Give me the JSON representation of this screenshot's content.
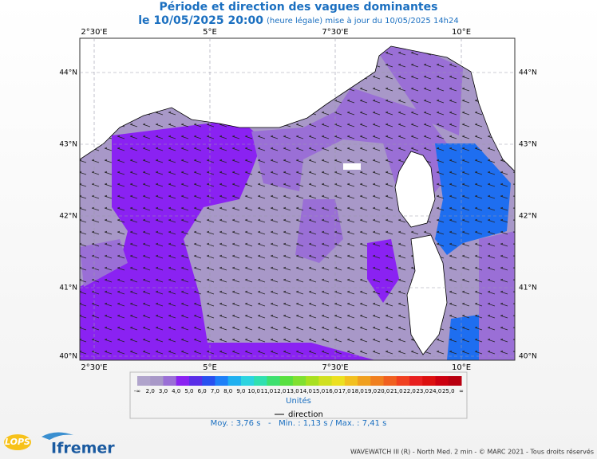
{
  "header": {
    "title": "Période et direction des vagues dominantes",
    "date": "le 10/05/2025 20:00",
    "note": "(heure légale) mise à jour du 10/05/2025 14h24"
  },
  "map": {
    "lon_labels": [
      "2°30'E",
      "5°E",
      "7°30'E",
      "10°E"
    ],
    "lat_labels": [
      "44°N",
      "43°N",
      "42°N",
      "41°N",
      "40°N"
    ]
  },
  "legend": {
    "labels": [
      "-∞",
      "2,0",
      "3,0",
      "4,0",
      "5,0",
      "6,0",
      "7,0",
      "8,0",
      "9,0",
      "10,0",
      "11,0",
      "12,0",
      "13,0",
      "14,0",
      "15,0",
      "16,0",
      "17,0",
      "18,0",
      "19,0",
      "20,0",
      "21,0",
      "22,0",
      "23,0",
      "24,0",
      "25,0",
      "∞"
    ],
    "colors": [
      "#b0a4cc",
      "#a898c8",
      "#9a6fd6",
      "#8a22f2",
      "#5a2ee8",
      "#2850f0",
      "#1e80f8",
      "#20b0f0",
      "#2cd4e0",
      "#30e0b0",
      "#3ee070",
      "#58e040",
      "#80e030",
      "#a8e020",
      "#d0e020",
      "#ece020",
      "#f2c020",
      "#f0a020",
      "#f08020",
      "#f06020",
      "#f04020",
      "#e82020",
      "#dc1010",
      "#cc0010",
      "#b80010"
    ],
    "unit": "Unités",
    "direction": "direction",
    "stats": "Moy. : 3,76 s   -   Min. : 1,13 s / Max. : 7,41 s"
  },
  "footer": {
    "logo1": "LOPS",
    "logo2": "Ifremer",
    "credit": "WAVEWATCH III (R) - North Med. 2 min - © MARC 2021 - Tous droits réservés"
  }
}
